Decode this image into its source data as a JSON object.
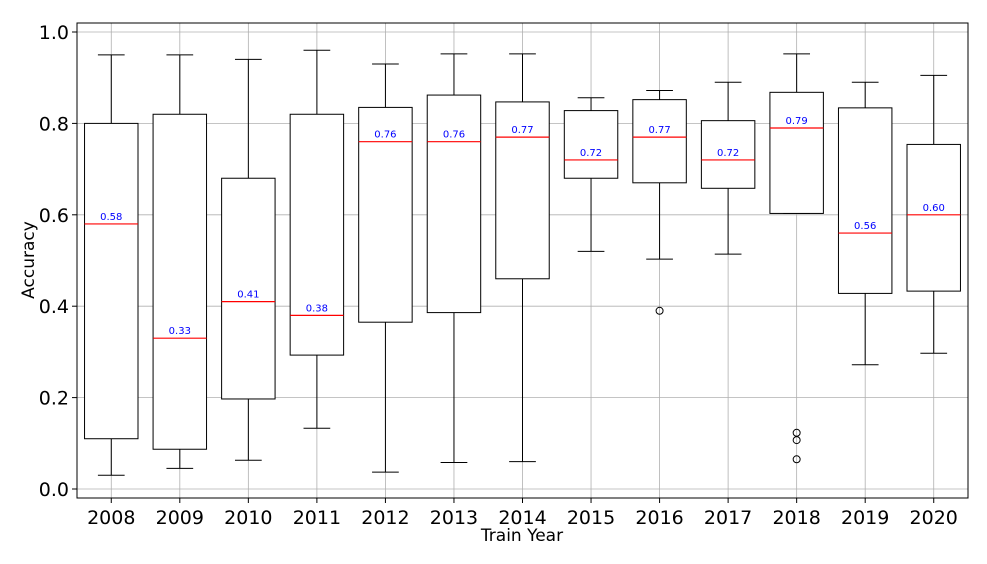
{
  "chart_data": {
    "type": "box",
    "xlabel": "Train Year",
    "ylabel": "Accuracy",
    "ylim": [
      0.0,
      1.0
    ],
    "yticks": [
      "0.0",
      "0.2",
      "0.4",
      "0.6",
      "0.8",
      "1.0"
    ],
    "grid": true,
    "colors": {
      "box": "#000000",
      "median": "#ff0000",
      "median_label": "#0000ff",
      "grid": "#b0b0b0"
    },
    "categories": [
      "2008",
      "2009",
      "2010",
      "2011",
      "2012",
      "2013",
      "2014",
      "2015",
      "2016",
      "2017",
      "2018",
      "2019",
      "2020"
    ],
    "boxes": [
      {
        "category": "2008",
        "whisker_low": 0.03,
        "q1": 0.11,
        "median": 0.58,
        "q3": 0.8,
        "whisker_high": 0.95,
        "outliers": [],
        "median_label": "0.58"
      },
      {
        "category": "2009",
        "whisker_low": 0.045,
        "q1": 0.087,
        "median": 0.33,
        "q3": 0.82,
        "whisker_high": 0.95,
        "outliers": [],
        "median_label": "0.33"
      },
      {
        "category": "2010",
        "whisker_low": 0.063,
        "q1": 0.197,
        "median": 0.41,
        "q3": 0.68,
        "whisker_high": 0.94,
        "outliers": [],
        "median_label": "0.41"
      },
      {
        "category": "2011",
        "whisker_low": 0.133,
        "q1": 0.293,
        "median": 0.38,
        "q3": 0.82,
        "whisker_high": 0.96,
        "outliers": [],
        "median_label": "0.38"
      },
      {
        "category": "2012",
        "whisker_low": 0.037,
        "q1": 0.365,
        "median": 0.76,
        "q3": 0.835,
        "whisker_high": 0.93,
        "outliers": [],
        "median_label": "0.76"
      },
      {
        "category": "2013",
        "whisker_low": 0.058,
        "q1": 0.386,
        "median": 0.76,
        "q3": 0.862,
        "whisker_high": 0.952,
        "outliers": [],
        "median_label": "0.76"
      },
      {
        "category": "2014",
        "whisker_low": 0.06,
        "q1": 0.46,
        "median": 0.77,
        "q3": 0.847,
        "whisker_high": 0.952,
        "outliers": [],
        "median_label": "0.77"
      },
      {
        "category": "2015",
        "whisker_low": 0.52,
        "q1": 0.68,
        "median": 0.72,
        "q3": 0.828,
        "whisker_high": 0.856,
        "outliers": [],
        "median_label": "0.72"
      },
      {
        "category": "2016",
        "whisker_low": 0.503,
        "q1": 0.67,
        "median": 0.77,
        "q3": 0.852,
        "whisker_high": 0.872,
        "outliers": [
          0.39
        ],
        "median_label": "0.77"
      },
      {
        "category": "2017",
        "whisker_low": 0.514,
        "q1": 0.658,
        "median": 0.72,
        "q3": 0.806,
        "whisker_high": 0.89,
        "outliers": [],
        "median_label": "0.72"
      },
      {
        "category": "2018",
        "whisker_low": 0.603,
        "q1": 0.603,
        "median": 0.79,
        "q3": 0.868,
        "whisker_high": 0.952,
        "outliers": [
          0.123,
          0.107,
          0.065
        ],
        "median_label": "0.79"
      },
      {
        "category": "2019",
        "whisker_low": 0.272,
        "q1": 0.428,
        "median": 0.56,
        "q3": 0.834,
        "whisker_high": 0.89,
        "outliers": [],
        "median_label": "0.56"
      },
      {
        "category": "2020",
        "whisker_low": 0.297,
        "q1": 0.433,
        "median": 0.6,
        "q3": 0.754,
        "whisker_high": 0.905,
        "outliers": [],
        "median_label": "0.60"
      }
    ]
  }
}
